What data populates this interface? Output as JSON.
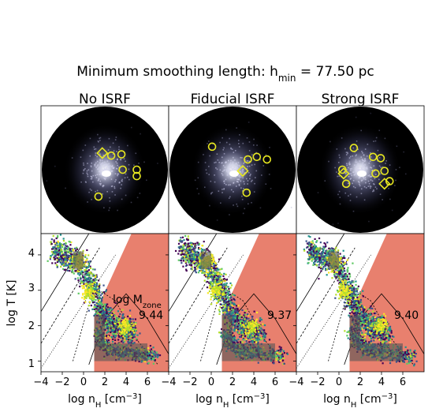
{
  "figure": {
    "suptitle_prefix": "Minimum smoothing length: h",
    "suptitle_sub": "min",
    "suptitle_suffix": " = 77.50 pc"
  },
  "panels": [
    {
      "title": "No ISRF",
      "mzone_value": "9.44"
    },
    {
      "title": "Fiducial ISRF",
      "mzone_value": "9.37"
    },
    {
      "title": "Strong ISRF",
      "mzone_value": "9.40"
    }
  ],
  "mzone_label": {
    "prefix": "log M",
    "sub": "zone"
  },
  "axes": {
    "ylabel": "log T [K]",
    "xlabel_prefix": "log n",
    "xlabel_sub": "H",
    "xlabel_unit": " [cm",
    "xlabel_exp": "−3",
    "xlabel_close": "]",
    "xticks": [
      "−4",
      "−2",
      "0",
      "2",
      "4",
      "6"
    ],
    "yticks": [
      "1",
      "2",
      "3",
      "4"
    ]
  },
  "colors": {
    "shade": "#e8806e",
    "box": "#555555",
    "marker": "#e8e820",
    "disk": "#000000"
  },
  "chart_data": {
    "type": "heatmap",
    "xlim": [
      -4,
      8
    ],
    "ylim": [
      0.7,
      4.6
    ],
    "xticks": [
      -4,
      -2,
      0,
      2,
      4,
      6
    ],
    "yticks": [
      1,
      2,
      3,
      4
    ],
    "shaded_region": {
      "description": "n_H > 1 excluded band",
      "x_min": 1
    },
    "boxes": [
      {
        "x": [
          -1,
          0
        ],
        "y": [
          3.6,
          4.1
        ]
      },
      {
        "x": [
          1,
          2
        ],
        "y": [
          1.4,
          2.3
        ]
      },
      {
        "x": [
          1,
          6
        ],
        "y": [
          1.0,
          1.5
        ]
      }
    ],
    "markers": [
      {
        "panel": "No ISRF",
        "circles": [
          [
            0.55,
            0.39
          ],
          [
            0.64,
            0.5
          ],
          [
            0.75,
            0.55
          ],
          [
            0.63,
            0.38
          ],
          [
            0.45,
            0.71
          ],
          [
            0.75,
            0.5
          ]
        ],
        "diamonds": [
          [
            0.48,
            0.37
          ]
        ]
      },
      {
        "panel": "Fiducial ISRF",
        "circles": [
          [
            0.34,
            0.32
          ],
          [
            0.62,
            0.42
          ],
          [
            0.77,
            0.42
          ],
          [
            0.61,
            0.68
          ],
          [
            0.69,
            0.4
          ]
        ],
        "diamonds": [
          [
            0.58,
            0.51
          ]
        ]
      },
      {
        "panel": "Strong ISRF",
        "circles": [
          [
            0.45,
            0.33
          ],
          [
            0.6,
            0.4
          ],
          [
            0.69,
            0.51
          ],
          [
            0.66,
            0.41
          ],
          [
            0.36,
            0.5
          ],
          [
            0.62,
            0.53
          ],
          [
            0.73,
            0.59
          ],
          [
            0.39,
            0.61
          ]
        ],
        "diamonds": [
          [
            0.37,
            0.53
          ],
          [
            0.69,
            0.61
          ]
        ]
      }
    ]
  }
}
